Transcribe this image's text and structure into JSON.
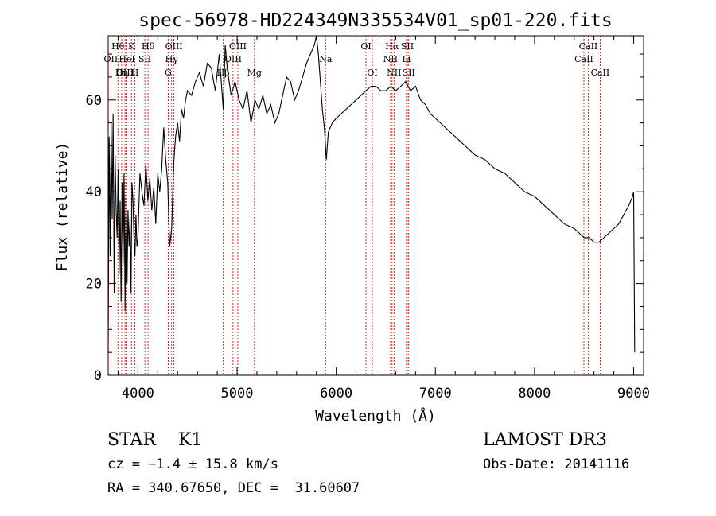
{
  "chart_data": {
    "type": "line",
    "title": "spec-56978-HD224349N335534V01_sp01-220.fits",
    "xlabel": "Wavelength (Å)",
    "ylabel": "Flux (relative)",
    "xlim": [
      3700,
      9100
    ],
    "ylim": [
      0,
      74
    ],
    "x_ticks": [
      4000,
      5000,
      6000,
      7000,
      8000,
      9000
    ],
    "y_ticks": [
      0,
      20,
      40,
      60
    ],
    "series": [
      {
        "color": "#000000",
        "x": [
          3700,
          3710,
          3720,
          3730,
          3740,
          3750,
          3760,
          3770,
          3780,
          3790,
          3800,
          3810,
          3820,
          3830,
          3840,
          3850,
          3860,
          3870,
          3880,
          3890,
          3900,
          3910,
          3920,
          3930,
          3940,
          3950,
          3960,
          3970,
          3980,
          3990,
          4000,
          4020,
          4040,
          4060,
          4080,
          4100,
          4120,
          4140,
          4160,
          4180,
          4200,
          4220,
          4240,
          4260,
          4280,
          4300,
          4320,
          4340,
          4360,
          4380,
          4400,
          4420,
          4440,
          4460,
          4480,
          4500,
          4540,
          4580,
          4620,
          4660,
          4700,
          4740,
          4780,
          4820,
          4860,
          4880,
          4900,
          4940,
          4980,
          5020,
          5060,
          5100,
          5140,
          5180,
          5220,
          5260,
          5300,
          5340,
          5380,
          5420,
          5460,
          5500,
          5540,
          5580,
          5620,
          5660,
          5700,
          5740,
          5780,
          5800,
          5820,
          5840,
          5860,
          5880,
          5900,
          5920,
          5960,
          6000,
          6050,
          6100,
          6150,
          6200,
          6250,
          6300,
          6350,
          6400,
          6450,
          6500,
          6550,
          6600,
          6650,
          6700,
          6750,
          6800,
          6850,
          6900,
          6950,
          7000,
          7050,
          7100,
          7150,
          7200,
          7250,
          7300,
          7400,
          7500,
          7600,
          7700,
          7800,
          7900,
          8000,
          8100,
          8200,
          8300,
          8400,
          8450,
          8500,
          8550,
          8600,
          8650,
          8700,
          8750,
          8800,
          8850,
          8900,
          8950,
          8990,
          9000,
          9010
        ],
        "y": [
          5,
          52,
          26,
          55,
          34,
          57,
          18,
          48,
          36,
          30,
          45,
          22,
          38,
          16,
          42,
          24,
          44,
          14,
          40,
          20,
          36,
          28,
          34,
          18,
          42,
          38,
          30,
          26,
          35,
          28,
          30,
          44,
          40,
          37,
          46,
          38,
          43,
          36,
          41,
          33,
          44,
          40,
          45,
          54,
          47,
          42,
          28,
          32,
          46,
          52,
          55,
          51,
          58,
          56,
          60,
          62,
          61,
          64,
          66,
          63,
          68,
          67,
          62,
          70,
          58,
          72,
          67,
          61,
          64,
          60,
          58,
          62,
          55,
          60,
          58,
          61,
          57,
          59,
          55,
          57,
          61,
          65,
          64,
          60,
          62,
          65,
          68,
          70,
          72,
          75,
          70,
          64,
          58,
          54,
          47,
          53,
          55,
          56,
          57,
          58,
          59,
          60,
          61,
          62,
          63,
          63,
          62,
          62,
          63,
          62,
          63,
          64,
          62,
          63,
          60,
          59,
          57,
          56,
          55,
          54,
          53,
          52,
          51,
          50,
          48,
          47,
          45,
          44,
          42,
          40,
          39,
          37,
          35,
          33,
          32,
          31,
          30,
          30,
          29,
          29,
          30,
          31,
          32,
          33,
          35,
          37,
          39,
          40,
          5
        ]
      }
    ],
    "line_markers": [
      {
        "label": "Hθ",
        "x": 3798,
        "row": 1
      },
      {
        "label": "K",
        "x": 3934,
        "row": 1
      },
      {
        "label": "Hδ",
        "x": 4102,
        "row": 1
      },
      {
        "label": "OII",
        "x": 3727,
        "row": 2
      },
      {
        "label": "HeI",
        "x": 3889,
        "row": 2
      },
      {
        "label": "SII",
        "x": 4070,
        "row": 2
      },
      {
        "label": "OIII",
        "x": 3869,
        "row": 3
      },
      {
        "label": "Hη",
        "x": 3836,
        "row": 3
      },
      {
        "label": "H",
        "x": 3969,
        "row": 3
      },
      {
        "label": "OIII",
        "x": 4363,
        "row": 1
      },
      {
        "label": "Hγ",
        "x": 4340,
        "row": 2
      },
      {
        "label": "G",
        "x": 4305,
        "row": 3
      },
      {
        "label": "OIII",
        "x": 5007,
        "row": 1
      },
      {
        "label": "OIII",
        "x": 4959,
        "row": 2
      },
      {
        "label": "Hβ",
        "x": 4861,
        "row": 3
      },
      {
        "label": "Mg",
        "x": 5175,
        "row": 3
      },
      {
        "label": "Na",
        "x": 5893,
        "row": 2
      },
      {
        "label": "OI",
        "x": 6300,
        "row": 1
      },
      {
        "label": "OI",
        "x": 6364,
        "row": 3
      },
      {
        "label": "Hα",
        "x": 6563,
        "row": 1
      },
      {
        "label": "SII",
        "x": 6717,
        "row": 1
      },
      {
        "label": "NII",
        "x": 6548,
        "row": 2
      },
      {
        "label": "Li",
        "x": 6708,
        "row": 2
      },
      {
        "label": "NII",
        "x": 6583,
        "row": 3
      },
      {
        "label": "SII",
        "x": 6731,
        "row": 3
      },
      {
        "label": "CaII",
        "x": 8542,
        "row": 1
      },
      {
        "label": "CaII",
        "x": 8498,
        "row": 2
      },
      {
        "label": "CaII",
        "x": 8662,
        "row": 3
      }
    ],
    "legend_left": {
      "class_line": "STAR    K1",
      "cz": "cz = −1.4 ± 15.8 km/s",
      "radec": "RA = 340.67650, DEC =  31.60607"
    },
    "legend_right": {
      "survey": "LAMOST DR3",
      "obs_date": "Obs-Date: 20141116"
    }
  }
}
